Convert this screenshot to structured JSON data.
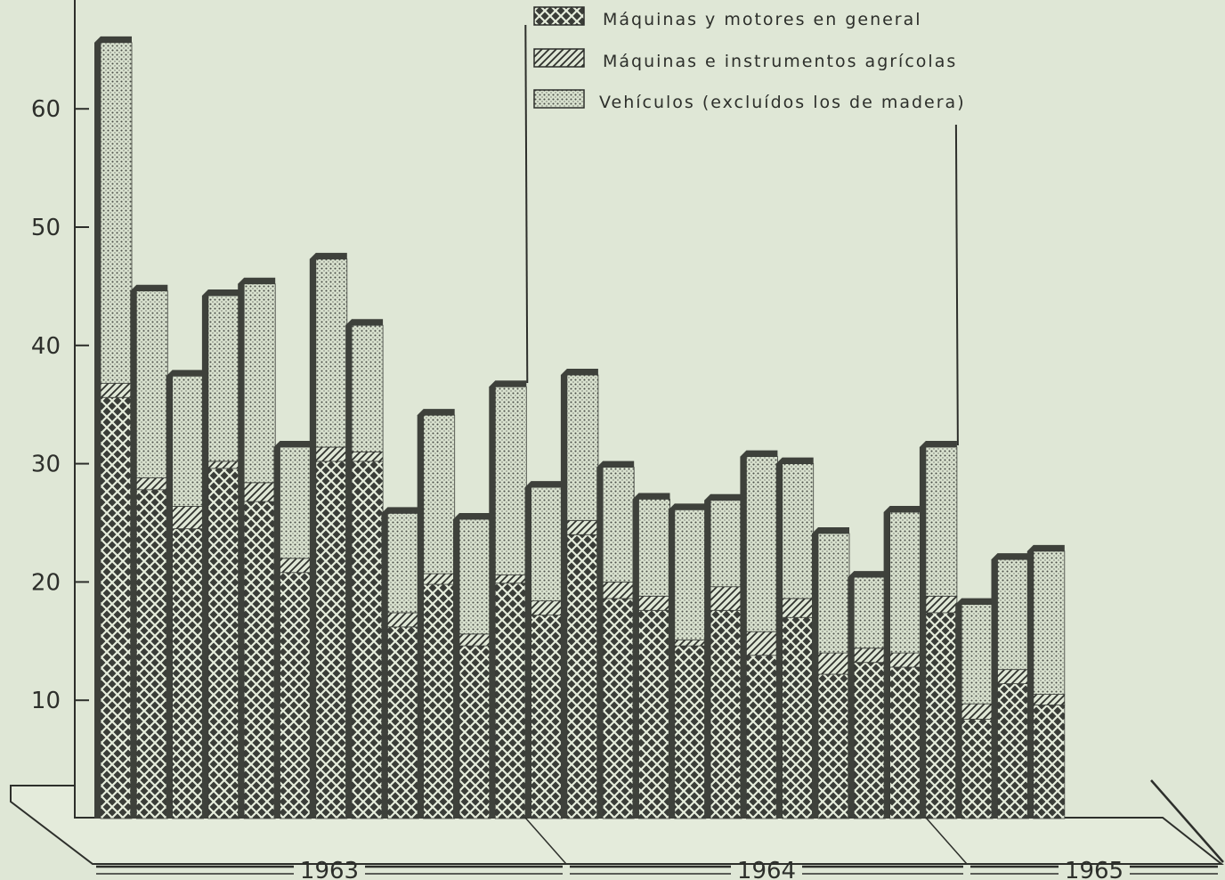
{
  "chart_data": {
    "type": "bar",
    "stacked": true,
    "ylim": [
      0,
      70
    ],
    "yticks": [
      0,
      10,
      20,
      30,
      40,
      50,
      60,
      70
    ],
    "grid": false,
    "legend_position": "top-center",
    "legend": [
      "Máquinas y motores en general",
      "Máquinas e instrumentos agrícolas",
      "Vehículos (excluídos los de madera)"
    ],
    "years": [
      {
        "label": "1963",
        "start_bar": 0,
        "end_bar": 11
      },
      {
        "label": "1964",
        "start_bar": 12,
        "end_bar": 23
      },
      {
        "label": "1965",
        "start_bar": 24,
        "end_bar": 26
      }
    ],
    "series": [
      {
        "name": "Máquinas y motores en general",
        "values": [
          35.6,
          27.8,
          24.5,
          29.6,
          26.8,
          20.8,
          30.2,
          30.2,
          16.2,
          19.8,
          14.6,
          19.9,
          17.2,
          24.0,
          18.6,
          17.6,
          14.6,
          17.6,
          13.8,
          17.0,
          12.2,
          13.2,
          12.8,
          17.4,
          8.4,
          11.4,
          9.6
        ]
      },
      {
        "name": "Máquinas e instrumentos agrícolas",
        "values": [
          1.2,
          1.0,
          1.9,
          0.6,
          1.6,
          1.2,
          1.2,
          0.8,
          1.2,
          0.9,
          1.0,
          0.7,
          1.2,
          1.2,
          1.4,
          1.2,
          0.5,
          2.0,
          2.0,
          1.6,
          1.8,
          1.2,
          1.2,
          1.4,
          1.3,
          1.2,
          0.9
        ]
      },
      {
        "name": "Vehículos (excluídos los de madera)",
        "values": [
          28.8,
          15.8,
          11.0,
          14.0,
          16.8,
          9.4,
          15.9,
          10.7,
          8.4,
          13.4,
          9.7,
          15.9,
          9.6,
          12.3,
          9.7,
          8.2,
          11.0,
          7.3,
          14.8,
          11.4,
          10.1,
          6.0,
          11.9,
          12.6,
          8.4,
          9.3,
          12.1
        ]
      }
    ]
  }
}
